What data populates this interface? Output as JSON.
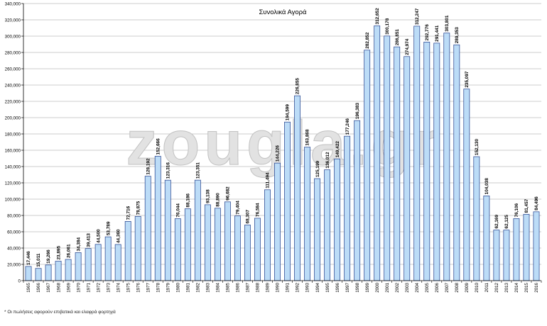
{
  "chart_data": {
    "type": "bar",
    "title": "Συνολικά Αγορά",
    "xlabel": "",
    "ylabel": "",
    "ylim": [
      0,
      340000
    ],
    "ytick_step": 20000,
    "ytick_labels": [
      "0",
      "20,000",
      "40,000",
      "60,000",
      "80,000",
      "100,000",
      "120,000",
      "140,000",
      "160,000",
      "180,000",
      "200,000",
      "220,000",
      "240,000",
      "260,000",
      "280,000",
      "300,000",
      "320,000",
      "340,000"
    ],
    "grid": true,
    "legend": "none",
    "categories": [
      "1965",
      "1966",
      "1967",
      "1968",
      "1969",
      "1970",
      "1971",
      "1972",
      "1973",
      "1974",
      "1975",
      "1976",
      "1977",
      "1978",
      "1979",
      "1980",
      "1981",
      "1982",
      "1983",
      "1984",
      "1985",
      "1986",
      "1987",
      "1988",
      "1989",
      "1990",
      "1991",
      "1992",
      "1993",
      "1994",
      "1995",
      "1996",
      "1997",
      "1998",
      "1999",
      "2000",
      "2001",
      "2002",
      "2003",
      "2004",
      "2005",
      "2006",
      "2007",
      "2008",
      "2009",
      "2010",
      "2011",
      "2012",
      "2013",
      "2014",
      "2015",
      "2016"
    ],
    "values": [
      17446,
      15011,
      19266,
      23895,
      26061,
      34384,
      39413,
      44500,
      53789,
      44360,
      72716,
      78875,
      128192,
      152666,
      123316,
      76044,
      88186,
      123351,
      93138,
      88890,
      96682,
      79404,
      68307,
      76584,
      111494,
      144226,
      194599,
      226855,
      163868,
      125199,
      136012,
      149422,
      177246,
      196383,
      282852,
      312652,
      300178,
      286851,
      274974,
      312247,
      292776,
      291441,
      303801,
      289353,
      235097,
      152130,
      104038,
      62169,
      62125,
      76106,
      81457,
      84496
    ],
    "data_labels": [
      "17,446",
      "15,011",
      "19,266",
      "23,895",
      "26,061",
      "34,384",
      "39,413",
      "44,500",
      "53,789",
      "44,360",
      "72,716",
      "78,875",
      "128,192",
      "152,666",
      "123,316",
      "76,044",
      "88,186",
      "123,351",
      "93,138",
      "88,890",
      "96,682",
      "79,404",
      "68,307",
      "76,584",
      "111,494",
      "144,226",
      "194,599",
      "226,855",
      "163,868",
      "125,199",
      "136,012",
      "149,422",
      "177,246",
      "196,383",
      "282,852",
      "312,652",
      "300,178",
      "286,851",
      "274,974",
      "312,247",
      "292,776",
      "291,441",
      "303,801",
      "289,353",
      "235,097",
      "152,130",
      "104,038",
      "62,169",
      "62,125",
      "76,106",
      "81,457",
      "84,496"
    ],
    "colors": {
      "bar_fill": "#bcdcf7",
      "bar_stroke": "#1f3d8a",
      "grid": "#9a9a9a",
      "axis": "#000000",
      "label": "#000000"
    }
  },
  "watermark": "zougla.gr",
  "footnote": "* Οι πωλήσεις αφορούν επιβατικά και ελαφρά φορτηγά"
}
